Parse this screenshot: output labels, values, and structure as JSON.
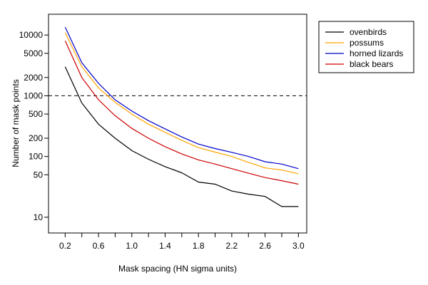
{
  "chart_data": {
    "type": "line",
    "title": "",
    "xlabel": "Mask spacing (HN sigma units)",
    "ylabel": "Number of mask points",
    "xlim": [
      0.0,
      3.1
    ],
    "ylim": [
      5.5,
      22000
    ],
    "ylog": true,
    "grid": false,
    "legend_position": "top-right-outside",
    "x_ticks": [
      0.2,
      0.6,
      1.0,
      1.4,
      1.8,
      2.2,
      2.6,
      3.0
    ],
    "x_tick_labels": [
      "0.2",
      "0.6",
      "1.0",
      "1.4",
      "1.8",
      "2.2",
      "2.6",
      "3.0"
    ],
    "x_minor_ticks": [
      0.4,
      0.8,
      1.2,
      1.6,
      2.0,
      2.4,
      2.8
    ],
    "y_ticks": [
      10,
      50,
      100,
      200,
      500,
      1000,
      2000,
      5000,
      10000
    ],
    "y_tick_labels": [
      "10",
      "50",
      "100",
      "200",
      "500",
      "1000",
      "2000",
      "5000",
      "10000"
    ],
    "reference_line": {
      "y": 1000,
      "style": "dashed",
      "color": "#000000"
    },
    "x": [
      0.2,
      0.4,
      0.6,
      0.8,
      1.0,
      1.2,
      1.4,
      1.6,
      1.8,
      2.0,
      2.2,
      2.4,
      2.6,
      2.8,
      3.0
    ],
    "series": [
      {
        "name": "ovenbirds",
        "color": "#000000",
        "values": [
          3000,
          760,
          340,
          200,
          125,
          90,
          68,
          54,
          38,
          35,
          27,
          24,
          22,
          15,
          15
        ]
      },
      {
        "name": "possums",
        "color": "#ffa500",
        "values": [
          11000,
          3000,
          1350,
          780,
          500,
          340,
          250,
          185,
          140,
          118,
          100,
          80,
          65,
          60,
          52
        ]
      },
      {
        "name": "horned lizards",
        "color": "#0000cc",
        "values": [
          13500,
          3500,
          1600,
          860,
          560,
          390,
          285,
          210,
          160,
          135,
          117,
          100,
          82,
          75,
          63
        ]
      },
      {
        "name": "black bears",
        "color": "#cc0000",
        "values": [
          8000,
          2000,
          860,
          470,
          290,
          200,
          145,
          110,
          88,
          75,
          63,
          53,
          45,
          40,
          35
        ]
      }
    ]
  }
}
